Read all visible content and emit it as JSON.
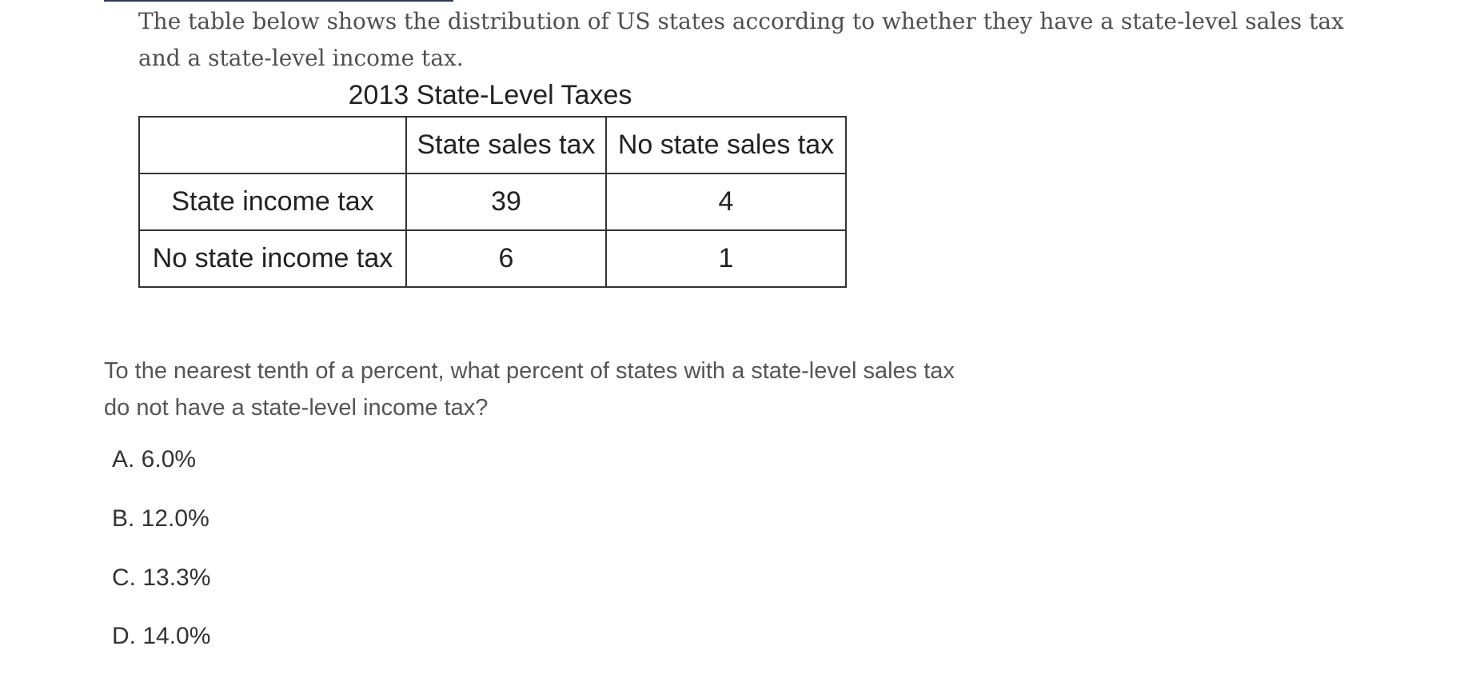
{
  "intro": "The table below shows the distribution of US states according to whether they have a state-level sales tax and a state-level income tax.",
  "table": {
    "title": "2013 State-Level Taxes",
    "header": [
      "",
      "State sales tax",
      "No state sales tax"
    ],
    "rows": [
      [
        "State income tax",
        "39",
        "4"
      ],
      [
        "No state income tax",
        "6",
        "1"
      ]
    ]
  },
  "question": "To the nearest tenth of a percent, what percent of states with a state-level sales tax do not have a state-level income tax?",
  "options": [
    {
      "letter": "A.",
      "value": "6.0%",
      "text": "A. 6.0%"
    },
    {
      "letter": "B.",
      "value": "12.0%",
      "text": "B. 12.0%"
    },
    {
      "letter": "C.",
      "value": "13.3%",
      "text": "C. 13.3%"
    },
    {
      "letter": "D.",
      "value": "14.0%",
      "text": "D. 14.0%"
    }
  ]
}
